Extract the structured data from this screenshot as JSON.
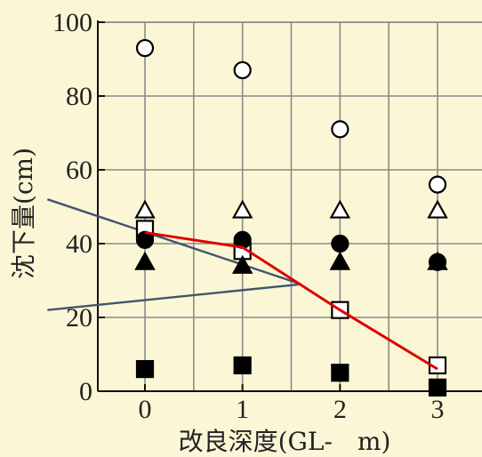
{
  "chart_data": {
    "type": "scatter",
    "title": "",
    "xlabel": "改良深度(GL-　m)",
    "ylabel": "沈下量(cm)",
    "xlim": [
      -0.4,
      3.3
    ],
    "ylim": [
      0,
      100
    ],
    "xticks": [
      0,
      1,
      2,
      3
    ],
    "yticks": [
      0,
      20,
      40,
      60,
      80,
      100
    ],
    "grid": true,
    "legend": "none",
    "series": [
      {
        "marker": "open-circle",
        "x": [
          0,
          1,
          2,
          3
        ],
        "y": [
          93,
          87,
          71,
          56
        ]
      },
      {
        "marker": "open-triangle",
        "x": [
          0,
          1,
          2,
          3
        ],
        "y": [
          49,
          49,
          49,
          49
        ]
      },
      {
        "marker": "open-square",
        "x": [
          0,
          1,
          2,
          3
        ],
        "y": [
          44,
          38,
          22,
          7
        ]
      },
      {
        "marker": "filled-circle",
        "x": [
          0,
          1,
          2,
          3
        ],
        "y": [
          41,
          41,
          40,
          35
        ]
      },
      {
        "marker": "filled-triangle",
        "x": [
          0,
          1,
          2,
          3
        ],
        "y": [
          35,
          34,
          35,
          35
        ]
      },
      {
        "marker": "filled-square",
        "x": [
          0,
          1,
          2,
          3
        ],
        "y": [
          6,
          7,
          5,
          1
        ]
      }
    ],
    "trend_line": {
      "color": "#e00000",
      "x": [
        0,
        1,
        2,
        3
      ],
      "y": [
        43,
        39,
        22,
        6
      ]
    },
    "callout_lines": {
      "color": "#44546a",
      "from": [
        [
          -1.0,
          52
        ],
        [
          -1.0,
          22
        ]
      ],
      "to": [
        1.6,
        29
      ]
    }
  }
}
